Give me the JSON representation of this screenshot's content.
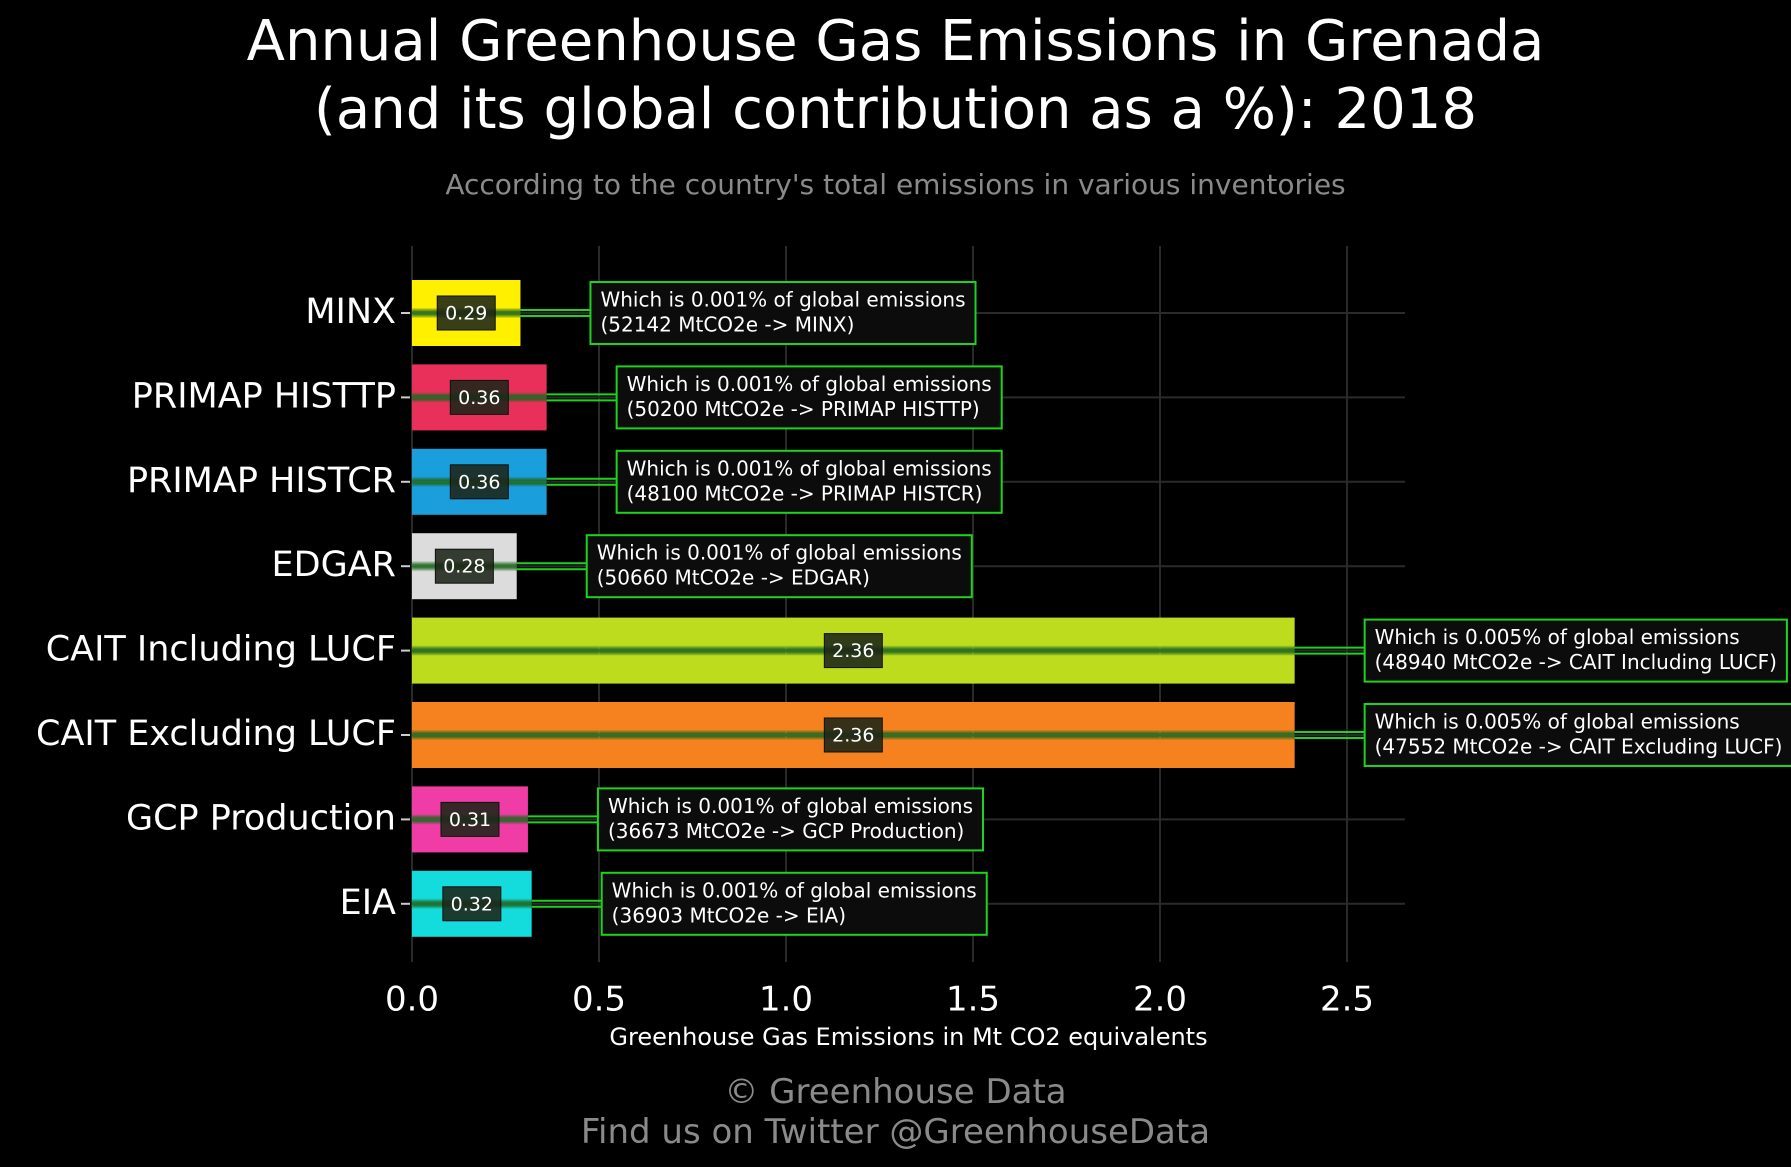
{
  "title": {
    "line1": "Annual Greenhouse Gas Emissions in Grenada",
    "line2": "(and its global contribution as a %): 2018"
  },
  "subtitle": "According to the country's total emissions in various inventories",
  "credit": {
    "line1": "© Greenhouse Data",
    "line2": "Find us on Twitter @GreenhouseData"
  },
  "chart_data": {
    "type": "bar",
    "orientation": "horizontal",
    "title": "Annual Greenhouse Gas Emissions in Grenada (and its global contribution as a %): 2018",
    "subtitle": "According to the country's total emissions in various inventories",
    "xlabel": "Greenhouse Gas Emissions in Mt CO2 equivalents",
    "ylabel": "",
    "xlim": [
      0,
      2.65
    ],
    "xticks": [
      0.0,
      0.5,
      1.0,
      1.5,
      2.0,
      2.5
    ],
    "xtick_labels": [
      "0.0",
      "0.5",
      "1.0",
      "1.5",
      "2.0",
      "2.5"
    ],
    "grid": true,
    "categories": [
      "MINX",
      "PRIMAP HISTTP",
      "PRIMAP HISTCR",
      "EDGAR",
      "CAIT Including LUCF",
      "CAIT Excluding LUCF",
      "GCP Production",
      "EIA"
    ],
    "values": [
      0.29,
      0.36,
      0.36,
      0.28,
      2.36,
      2.36,
      0.31,
      0.32
    ],
    "value_labels": [
      "0.29",
      "0.36",
      "0.36",
      "0.28",
      "2.36",
      "2.36",
      "0.31",
      "0.32"
    ],
    "colors": [
      "#fff000",
      "#e8305a",
      "#1a9fdc",
      "#dcdcdc",
      "#bedc1e",
      "#f5821f",
      "#f03ca5",
      "#14dcdc"
    ],
    "annotations": [
      {
        "line1": "Which is 0.001% of global emissions",
        "line2": "(52142 MtCO2e -> MINX)"
      },
      {
        "line1": "Which is 0.001% of global emissions",
        "line2": "(50200 MtCO2e -> PRIMAP HISTTP)"
      },
      {
        "line1": "Which is 0.001% of global emissions",
        "line2": "(48100 MtCO2e -> PRIMAP HISTCR)"
      },
      {
        "line1": "Which is 0.001% of global emissions",
        "line2": "(50660 MtCO2e -> EDGAR)"
      },
      {
        "line1": "Which is 0.005% of global emissions",
        "line2": "(48940 MtCO2e -> CAIT Including LUCF)"
      },
      {
        "line1": "Which is 0.005% of global emissions",
        "line2": "(47552 MtCO2e -> CAIT Excluding LUCF)"
      },
      {
        "line1": "Which is 0.001% of global emissions",
        "line2": "(36673 MtCO2e -> GCP Production)"
      },
      {
        "line1": "Which is 0.001% of global emissions",
        "line2": "(36903 MtCO2e -> EIA)"
      }
    ],
    "style": {
      "background": "#000000",
      "grid_color": "#2a2a2a",
      "annotation_border": "#1ed21e",
      "annotation_fill": "#0c0c0c",
      "connector_color": "#1ed21e",
      "text_color": "#ffffff",
      "muted_text": "#8a8a8a"
    }
  }
}
